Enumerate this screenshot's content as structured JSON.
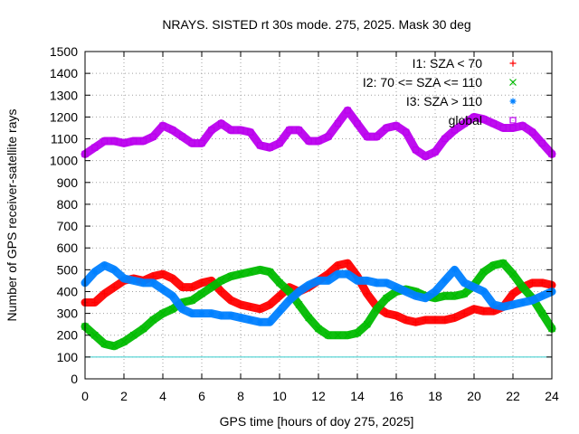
{
  "chart_data": {
    "type": "scatter",
    "title": "NRAYS. SISTED rt 30s mode. 275, 2025. Mask 30 deg",
    "xlabel": "GPS time [hours of doy 275, 2025]",
    "ylabel": "Number of GPS receiver-satellite rays",
    "xlim": [
      0,
      24
    ],
    "ylim": [
      0,
      1500
    ],
    "x_ticks": [
      "0",
      "2",
      "4",
      "6",
      "8",
      "10",
      "12",
      "14",
      "16",
      "18",
      "20",
      "22",
      "24"
    ],
    "y_ticks": [
      "0",
      "100",
      "200",
      "300",
      "400",
      "500",
      "600",
      "700",
      "800",
      "900",
      "1000",
      "1100",
      "1200",
      "1300",
      "1400",
      "1500"
    ],
    "grid": true,
    "legend_position": "top-right",
    "reference_line": {
      "y": 100,
      "color": "#33cccc"
    },
    "series": [
      {
        "name": "I1: SZA < 70",
        "marker": "+",
        "color": "#ff0000",
        "x": [
          0,
          0.5,
          1,
          1.5,
          2,
          2.5,
          3,
          3.5,
          4,
          4.5,
          5,
          5.5,
          6,
          6.5,
          7,
          7.5,
          8,
          8.5,
          9,
          9.5,
          10,
          10.5,
          11,
          11.5,
          12,
          12.5,
          13,
          13.5,
          14,
          14.5,
          15,
          15.5,
          16,
          16.5,
          17,
          17.5,
          18,
          18.5,
          19,
          19.5,
          20,
          20.5,
          21,
          21.5,
          22,
          22.5,
          23,
          23.5,
          24
        ],
        "values": [
          350,
          350,
          390,
          420,
          450,
          460,
          450,
          470,
          480,
          460,
          420,
          420,
          440,
          450,
          400,
          360,
          340,
          330,
          320,
          340,
          380,
          420,
          400,
          420,
          450,
          480,
          520,
          530,
          470,
          390,
          330,
          300,
          290,
          270,
          260,
          270,
          270,
          270,
          280,
          300,
          320,
          310,
          310,
          330,
          390,
          420,
          440,
          440,
          430
        ]
      },
      {
        "name": "I2: 70 <= SZA <= 110",
        "marker": "x",
        "color": "#00bb00",
        "x": [
          0,
          0.5,
          1,
          1.5,
          2,
          2.5,
          3,
          3.5,
          4,
          4.5,
          5,
          5.5,
          6,
          6.5,
          7,
          7.5,
          8,
          8.5,
          9,
          9.5,
          10,
          10.5,
          11,
          11.5,
          12,
          12.5,
          13,
          13.5,
          14,
          14.5,
          15,
          15.5,
          16,
          16.5,
          17,
          17.5,
          18,
          18.5,
          19,
          19.5,
          20,
          20.5,
          21,
          21.5,
          22,
          22.5,
          23,
          23.5,
          24
        ],
        "values": [
          240,
          200,
          160,
          150,
          170,
          200,
          230,
          270,
          300,
          320,
          350,
          360,
          390,
          420,
          450,
          470,
          480,
          490,
          500,
          490,
          440,
          400,
          340,
          280,
          230,
          200,
          200,
          200,
          210,
          250,
          320,
          370,
          400,
          410,
          400,
          380,
          370,
          380,
          380,
          390,
          430,
          490,
          520,
          530,
          480,
          420,
          370,
          300,
          230
        ]
      },
      {
        "name": "I3: SZA > 110",
        "marker": "*",
        "color": "#0080ff",
        "x": [
          0,
          0.5,
          1,
          1.5,
          2,
          2.5,
          3,
          3.5,
          4,
          4.5,
          5,
          5.5,
          6,
          6.5,
          7,
          7.5,
          8,
          8.5,
          9,
          9.5,
          10,
          10.5,
          11,
          11.5,
          12,
          12.5,
          13,
          13.5,
          14,
          14.5,
          15,
          15.5,
          16,
          16.5,
          17,
          17.5,
          18,
          18.5,
          19,
          19.5,
          20,
          20.5,
          21,
          21.5,
          22,
          22.5,
          23,
          23.5,
          24
        ],
        "values": [
          440,
          490,
          520,
          500,
          460,
          450,
          440,
          440,
          410,
          380,
          320,
          300,
          300,
          300,
          290,
          290,
          280,
          270,
          260,
          260,
          310,
          360,
          400,
          430,
          450,
          450,
          480,
          480,
          450,
          450,
          440,
          440,
          420,
          400,
          380,
          370,
          400,
          450,
          500,
          440,
          420,
          400,
          340,
          330,
          340,
          350,
          360,
          380,
          400
        ]
      },
      {
        "name": "global",
        "marker": "square",
        "color": "#bb00ee",
        "x": [
          0,
          0.5,
          1,
          1.5,
          2,
          2.5,
          3,
          3.5,
          4,
          4.5,
          5,
          5.5,
          6,
          6.5,
          7,
          7.5,
          8,
          8.5,
          9,
          9.5,
          10,
          10.5,
          11,
          11.5,
          12,
          12.5,
          13,
          13.5,
          14,
          14.5,
          15,
          15.5,
          16,
          16.5,
          17,
          17.5,
          18,
          18.5,
          19,
          19.5,
          20,
          20.5,
          21,
          21.5,
          22,
          22.5,
          23,
          23.5,
          24
        ],
        "values": [
          1030,
          1060,
          1090,
          1090,
          1080,
          1090,
          1090,
          1110,
          1160,
          1140,
          1110,
          1080,
          1080,
          1140,
          1170,
          1140,
          1140,
          1130,
          1070,
          1060,
          1080,
          1140,
          1140,
          1090,
          1090,
          1110,
          1170,
          1230,
          1170,
          1110,
          1110,
          1150,
          1160,
          1130,
          1050,
          1020,
          1040,
          1100,
          1140,
          1170,
          1200,
          1190,
          1170,
          1150,
          1150,
          1160,
          1130,
          1080,
          1030
        ]
      }
    ]
  }
}
